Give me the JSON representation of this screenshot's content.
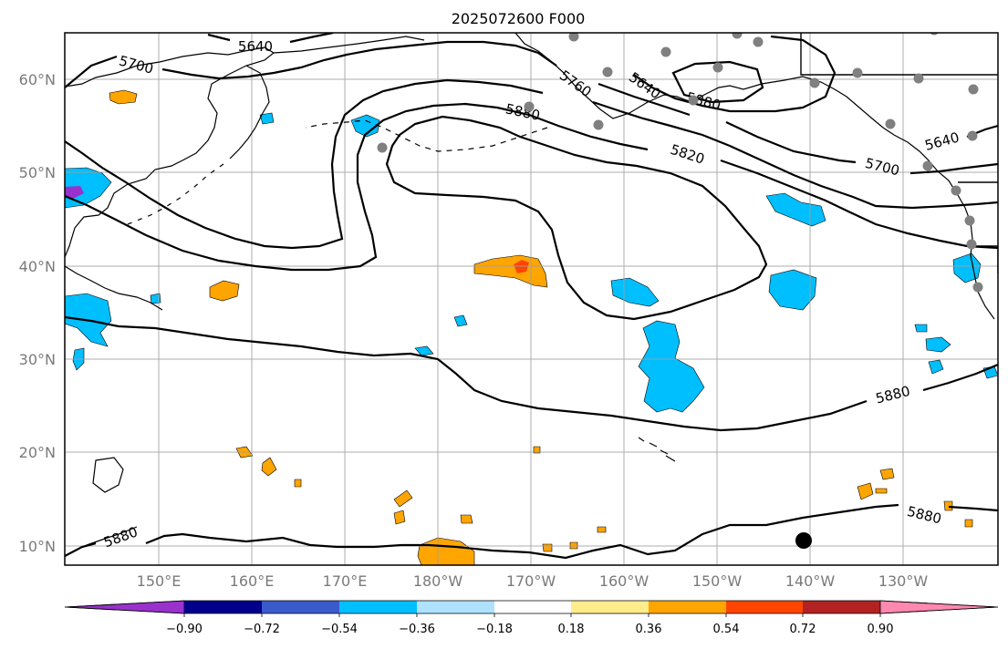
{
  "title": "2025072600 F000",
  "lat_labels": [
    "60°N",
    "50°N",
    "40°N",
    "30°N",
    "20°N",
    "10°N"
  ],
  "lon_labels": [
    "150°E",
    "160°E",
    "170°E",
    "180°W",
    "170°W",
    "160°W",
    "150°W",
    "140°W",
    "130°W"
  ],
  "colorbar": {
    "colors": [
      "#9932cc",
      "#00008b",
      "#3a5bcc",
      "#00bfff",
      "#aee2ff",
      "#ffffff",
      "#ffec8b",
      "#ffa500",
      "#ff4500",
      "#b22222",
      "#ff88b0"
    ],
    "tick_labels": [
      "−0.90",
      "−0.72",
      "−0.54",
      "−0.36",
      "−0.18",
      "0.18",
      "0.36",
      "0.54",
      "0.72",
      "0.90"
    ],
    "extend": "both"
  },
  "contours": {
    "labels": [
      "5640",
      "5700",
      "5760",
      "5640",
      "5880",
      "5880",
      "5820",
      "5700",
      "5640",
      "5880",
      "5880",
      "5880"
    ]
  },
  "map": {
    "extent_lon": [
      140,
      241
    ],
    "extent_lat": [
      8,
      65
    ],
    "grid": true,
    "contour_color": "#000000",
    "station_color": "#808080"
  }
}
